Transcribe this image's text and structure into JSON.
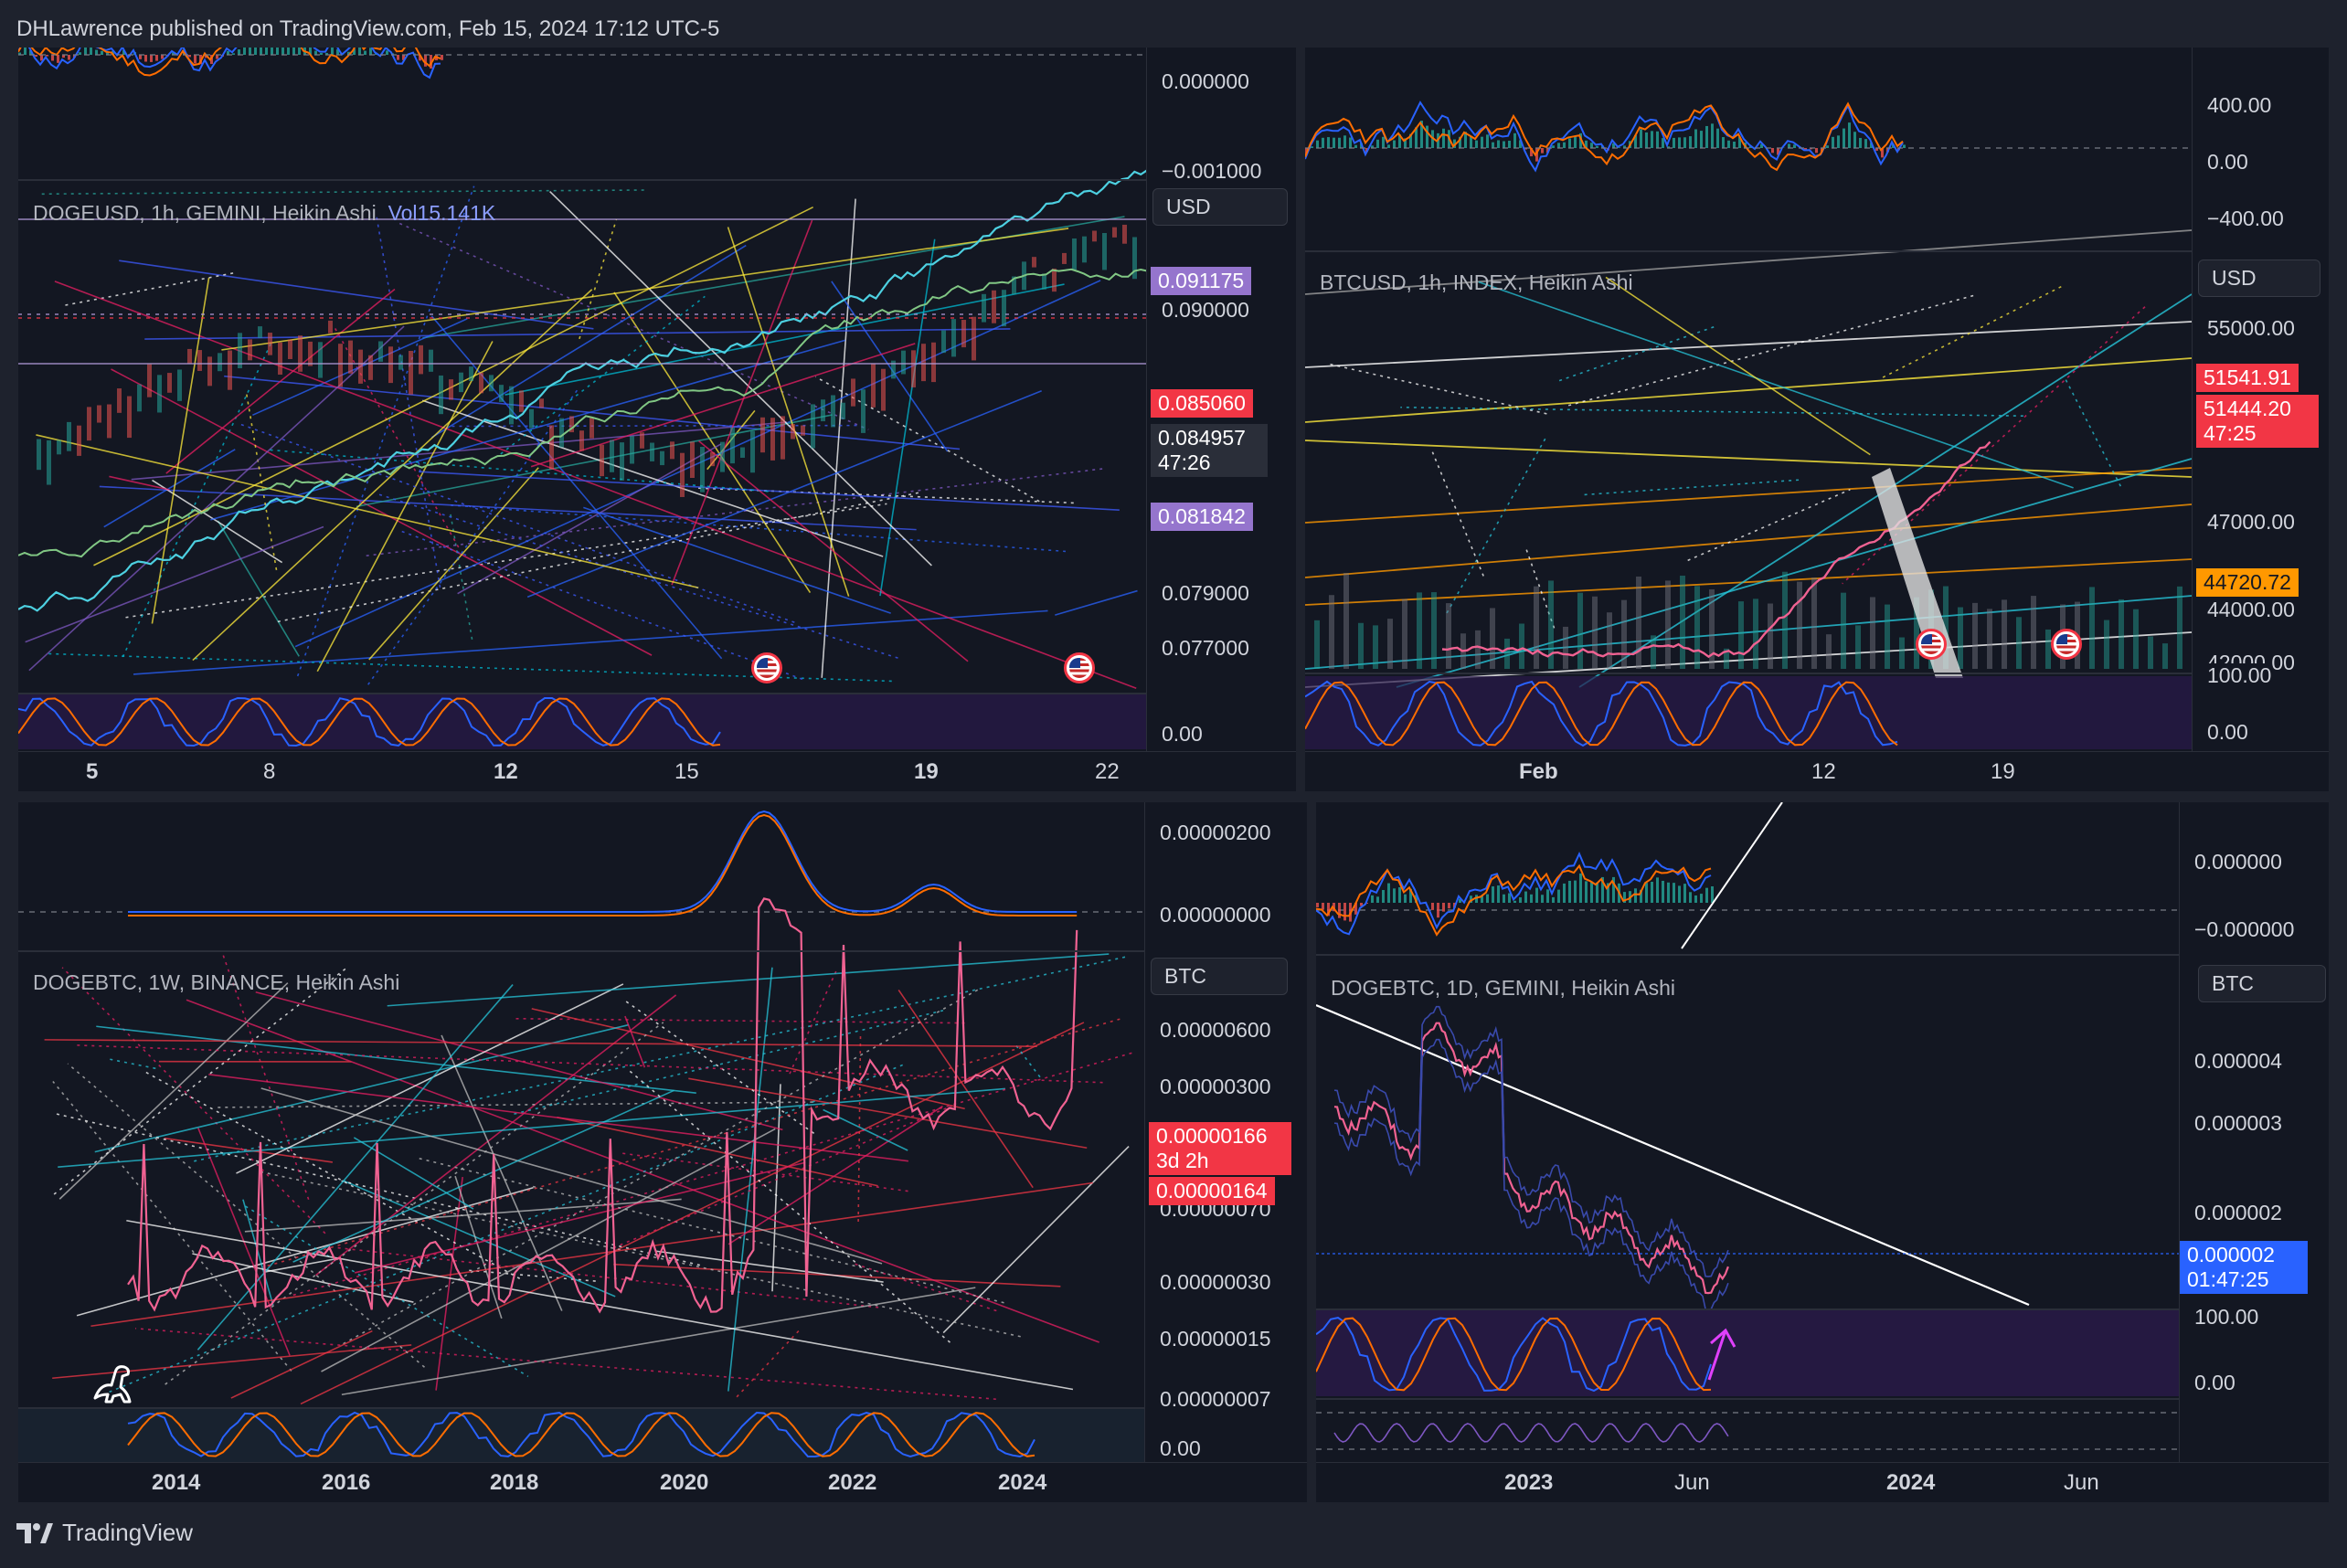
{
  "header": {
    "text": "DHLawrence published on TradingView.com, Feb 15, 2024 17:12 UTC-5"
  },
  "footer": {
    "brand": "TradingView"
  },
  "panels": {
    "tl": {
      "osc_ticks": [
        "0.000000",
        "−0.001000"
      ],
      "title": "DOGEUSD, 1h, GEMINI, Heikin Ashi",
      "vol_label": "Vol",
      "vol_value": "15.141K",
      "currency": "USD",
      "price_ticks": [
        "0.090000",
        "0.079000",
        "0.077000"
      ],
      "labels": {
        "upper": "0.091175",
        "red": "0.085060",
        "last": "0.084957",
        "countdown": "47:26",
        "lower": "0.081842"
      },
      "stoch_tick": "0.00",
      "x_ticks": [
        "5",
        "8",
        "12",
        "15",
        "19",
        "22"
      ],
      "colors": {
        "upper": "#9575cd",
        "red": "#f23645",
        "last": "#2a2e39",
        "lower": "#9575cd"
      }
    },
    "tr": {
      "osc_ticks": [
        "400.00",
        "0.00",
        "−400.00"
      ],
      "title": "BTCUSD, 1h, INDEX, Heikin Ashi",
      "currency": "USD",
      "price_ticks": [
        "55000.00",
        "47000.00",
        "44000.00",
        "42000.00"
      ],
      "labels": {
        "red_top": "51541.91",
        "red_last": "51444.20",
        "countdown": "47:25",
        "orange": "44720.72"
      },
      "stoch_ticks": [
        "100.00",
        "0.00"
      ],
      "x_ticks": [
        "Feb",
        "12",
        "19"
      ],
      "colors": {
        "red": "#f23645",
        "orange": "#ff9800"
      }
    },
    "bl": {
      "osc_ticks": [
        "0.00000200",
        "0.00000000"
      ],
      "title": "DOGEBTC, 1W, BINANCE, Heikin Ashi",
      "currency": "BTC",
      "price_ticks": [
        "0.00000600",
        "0.00000300",
        "0.00000070",
        "0.00000030",
        "0.00000015",
        "0.00000007"
      ],
      "labels": {
        "last": "0.00000166",
        "countdown": "3d 2h",
        "low": "0.00000164"
      },
      "stoch_tick": "0.00",
      "x_ticks": [
        "2014",
        "2016",
        "2018",
        "2020",
        "2022",
        "2024"
      ],
      "colors": {
        "red": "#f23645"
      }
    },
    "br": {
      "osc_ticks": [
        "0.000000",
        "−0.000000"
      ],
      "title": "DOGEBTC, 1D, GEMINI, Heikin Ashi",
      "currency": "BTC",
      "price_ticks": [
        "0.000004",
        "0.000003",
        "0.000002"
      ],
      "labels": {
        "last": "0.000002",
        "countdown": "01:47:25"
      },
      "stoch_ticks": [
        "100.00",
        "0.00"
      ],
      "x_ticks": [
        "2023",
        "Jun",
        "2024",
        "Jun"
      ],
      "colors": {
        "blue": "#2962ff"
      }
    }
  }
}
